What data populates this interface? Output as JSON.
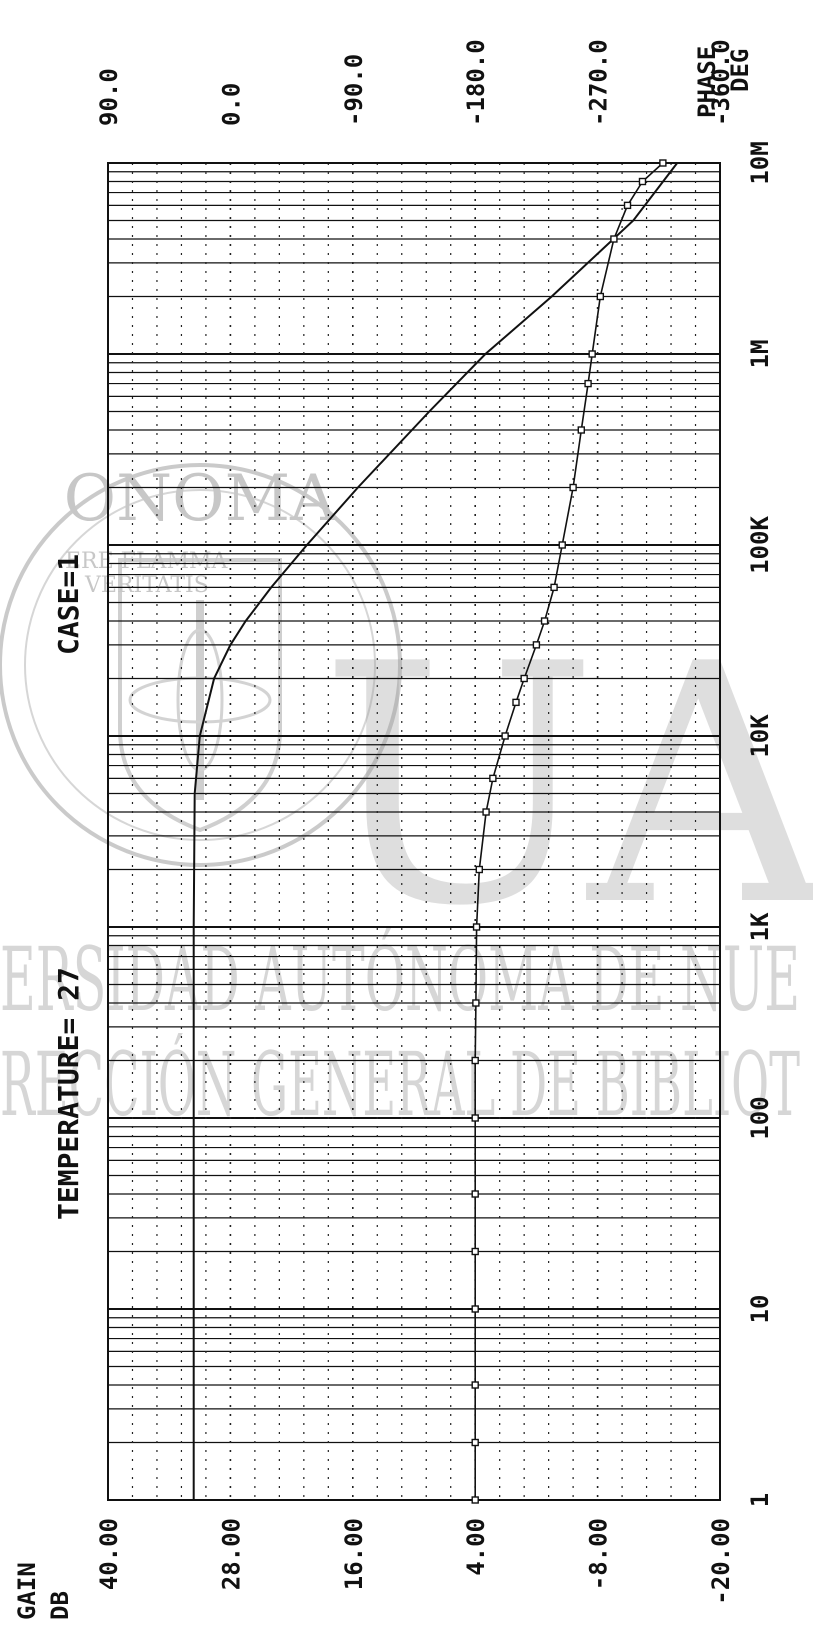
{
  "watermark": {
    "logo_top": "ONOMA",
    "logo_motto_1": "ERE FLAMMA",
    "logo_motto_2": "VERITATIS",
    "big_letters": "UAN",
    "line_1": "ERSIDAD AUTÓNOMA DE NUE",
    "line_2": "RECCIÓN GENERAL DE BIBLIOT"
  },
  "chart_data": {
    "type": "line",
    "title": "TEMPERATURE= 27",
    "subtitle": "CASE=1",
    "x": {
      "scale": "log",
      "range": [
        1,
        10000000
      ],
      "tick_values": [
        1,
        10,
        100,
        1000,
        10000,
        100000,
        1000000,
        10000000
      ],
      "tick_labels": [
        "1",
        "10",
        "100",
        "1K",
        "10K",
        "100K",
        "1M",
        "10M"
      ]
    },
    "y_left": {
      "label_1": "GAIN",
      "label_2": "DB",
      "range": [
        -20,
        40
      ],
      "tick_values": [
        40,
        28,
        16,
        4,
        -8,
        -20
      ],
      "tick_labels": [
        "40.00",
        "28.00",
        "16.00",
        "4.00",
        "-8.00",
        "-20.00"
      ]
    },
    "y_right": {
      "label_1": "PHASE",
      "label_2": "DEG",
      "range": [
        -360,
        90
      ],
      "tick_values": [
        90,
        0,
        -90,
        -180,
        -270,
        -360
      ],
      "tick_labels": [
        "90.0",
        "0.0",
        "-90.0",
        "-180.0",
        "-270.0",
        "-360.0"
      ]
    },
    "grid": true,
    "series": [
      {
        "axis": "left",
        "marker": "none",
        "x": [
          1,
          10,
          100,
          1000,
          5000,
          10000,
          20000,
          30000,
          40000,
          60000,
          100000,
          200000,
          500000,
          1000000,
          2000000,
          5000000,
          10000000
        ],
        "y": [
          31.6,
          31.6,
          31.6,
          31.6,
          31.5,
          31.0,
          29.6,
          28.0,
          26.5,
          24.0,
          20.5,
          15.5,
          8.5,
          3.0,
          -3.5,
          -11.5,
          -15.8
        ]
      },
      {
        "axis": "right",
        "marker": "square",
        "x": [
          1,
          2,
          4,
          10,
          20,
          40,
          100,
          200,
          400,
          1000,
          2000,
          4000,
          6000,
          10000,
          15000,
          20000,
          30000,
          40000,
          60000,
          100000,
          200000,
          400000,
          700000,
          1000000,
          2000000,
          4000000,
          6000000,
          8000000,
          10000000
        ],
        "y": [
          -180,
          -180,
          -180,
          -180,
          -180,
          -180,
          -180,
          -180,
          -180.5,
          -181,
          -183,
          -188,
          -193,
          -202,
          -210,
          -216,
          -225,
          -231,
          -238,
          -244,
          -252,
          -258,
          -263,
          -266,
          -272,
          -282,
          -292,
          -303,
          -318
        ]
      }
    ]
  }
}
